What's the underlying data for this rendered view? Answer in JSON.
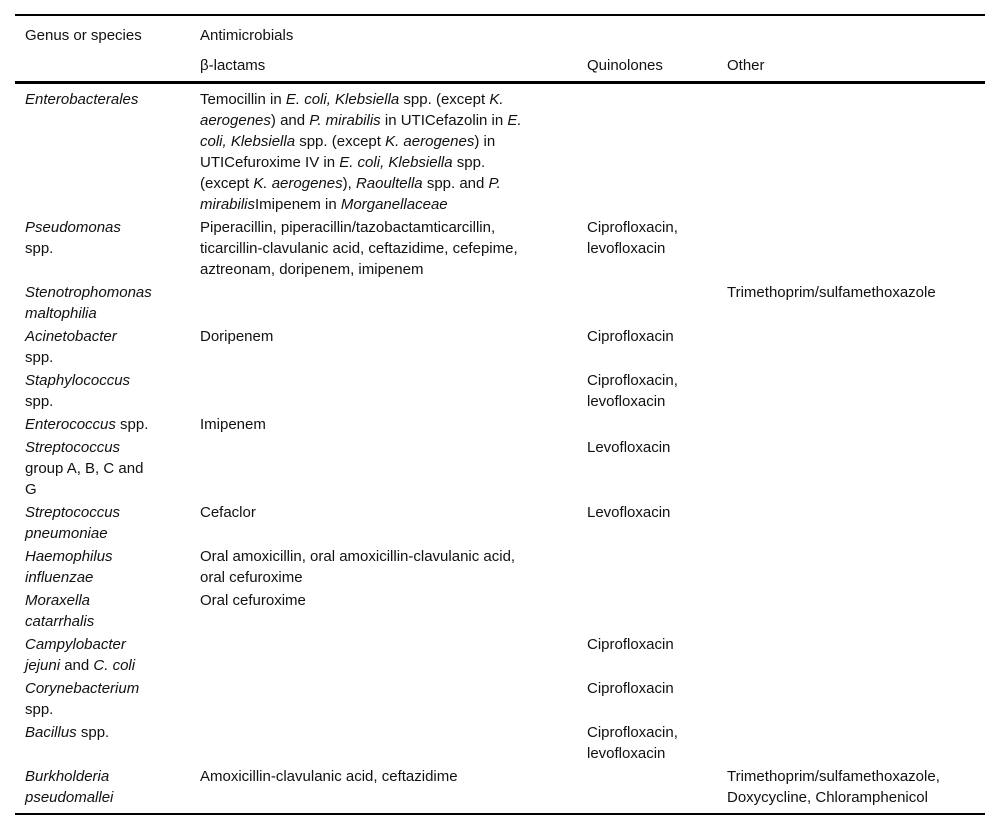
{
  "header": {
    "genus_label": "Genus or species",
    "antimicrobials_label": "Antimicrobials",
    "beta_lactams_label": "β-lactams",
    "quinolones_label": "Quinolones",
    "other_label": "Other"
  },
  "rows": [
    {
      "genus": [
        [
          {
            "t": "Enterobacterales",
            "i": true
          }
        ]
      ],
      "beta_lactams": [
        [
          {
            "t": "Temocillin in ",
            "i": false
          },
          {
            "t": "E. coli, Klebsiella",
            "i": true
          },
          {
            "t": " spp. (except ",
            "i": false
          },
          {
            "t": "K.",
            "i": true
          }
        ],
        [
          {
            "t": "aerogenes",
            "i": true
          },
          {
            "t": ") and ",
            "i": false
          },
          {
            "t": "P. mirabilis",
            "i": true
          },
          {
            "t": " in UTICefazolin in ",
            "i": false
          },
          {
            "t": "E.",
            "i": true
          }
        ],
        [
          {
            "t": "coli, Klebsiella",
            "i": true
          },
          {
            "t": " spp. (except ",
            "i": false
          },
          {
            "t": "K. aerogenes",
            "i": true
          },
          {
            "t": ") in",
            "i": false
          }
        ],
        [
          {
            "t": "UTICefuroxime IV in ",
            "i": false
          },
          {
            "t": "E. coli, Klebsiella",
            "i": true
          },
          {
            "t": " spp.",
            "i": false
          }
        ],
        [
          {
            "t": "(except ",
            "i": false
          },
          {
            "t": "K. aerogenes",
            "i": true
          },
          {
            "t": "), ",
            "i": false
          },
          {
            "t": "Raoultella",
            "i": true
          },
          {
            "t": " spp. and ",
            "i": false
          },
          {
            "t": "P.",
            "i": true
          }
        ],
        [
          {
            "t": "mirabilis",
            "i": true
          },
          {
            "t": "Imipenem in ",
            "i": false
          },
          {
            "t": "Morganellaceae",
            "i": true
          }
        ]
      ],
      "quinolones": [],
      "other": []
    },
    {
      "genus": [
        [
          {
            "t": "Pseudomonas",
            "i": true
          }
        ],
        [
          {
            "t": "spp.",
            "i": false
          }
        ]
      ],
      "beta_lactams": [
        [
          {
            "t": "Piperacillin, piperacillin/tazobactamticarcillin,",
            "i": false
          }
        ],
        [
          {
            "t": "ticarcillin-clavulanic acid, ceftazidime, cefepime,",
            "i": false
          }
        ],
        [
          {
            "t": "aztreonam, doripenem, imipenem",
            "i": false
          }
        ]
      ],
      "quinolones": [
        [
          {
            "t": "Ciprofloxacin,",
            "i": false
          }
        ],
        [
          {
            "t": "levofloxacin",
            "i": false
          }
        ]
      ],
      "other": []
    },
    {
      "genus": [
        [
          {
            "t": "Stenotrophomonas",
            "i": true
          }
        ],
        [
          {
            "t": "maltophilia",
            "i": true
          }
        ]
      ],
      "beta_lactams": [],
      "quinolones": [],
      "other": [
        [
          {
            "t": "Trimethoprim/sulfamethoxazole",
            "i": false
          }
        ]
      ]
    },
    {
      "genus": [
        [
          {
            "t": "Acinetobacter",
            "i": true
          }
        ],
        [
          {
            "t": "spp.",
            "i": false
          }
        ]
      ],
      "beta_lactams": [
        [
          {
            "t": "Doripenem",
            "i": false
          }
        ]
      ],
      "quinolones": [
        [
          {
            "t": "Ciprofloxacin",
            "i": false
          }
        ]
      ],
      "other": []
    },
    {
      "genus": [
        [
          {
            "t": "Staphylococcus",
            "i": true
          }
        ],
        [
          {
            "t": "spp.",
            "i": false
          }
        ]
      ],
      "beta_lactams": [],
      "quinolones": [
        [
          {
            "t": "Ciprofloxacin,",
            "i": false
          }
        ],
        [
          {
            "t": "levofloxacin",
            "i": false
          }
        ]
      ],
      "other": []
    },
    {
      "genus": [
        [
          {
            "t": "Enterococcus",
            "i": true
          },
          {
            "t": " spp.",
            "i": false
          }
        ]
      ],
      "beta_lactams": [
        [
          {
            "t": "Imipenem",
            "i": false
          }
        ]
      ],
      "quinolones": [],
      "other": []
    },
    {
      "genus": [
        [
          {
            "t": "Streptococcus",
            "i": true
          }
        ],
        [
          {
            "t": "group A, B, C and",
            "i": false
          }
        ],
        [
          {
            "t": "G",
            "i": false
          }
        ]
      ],
      "beta_lactams": [],
      "quinolones": [
        [
          {
            "t": "Levofloxacin",
            "i": false
          }
        ]
      ],
      "other": []
    },
    {
      "genus": [
        [
          {
            "t": "Streptococcus",
            "i": true
          }
        ],
        [
          {
            "t": "pneumoniae",
            "i": true
          }
        ]
      ],
      "beta_lactams": [
        [
          {
            "t": "Cefaclor",
            "i": false
          }
        ]
      ],
      "quinolones": [
        [
          {
            "t": "Levofloxacin",
            "i": false
          }
        ]
      ],
      "other": []
    },
    {
      "genus": [
        [
          {
            "t": "Haemophilus",
            "i": true
          }
        ],
        [
          {
            "t": "influenzae",
            "i": true
          }
        ]
      ],
      "beta_lactams": [
        [
          {
            "t": "Oral amoxicillin, oral amoxicillin-clavulanic acid,",
            "i": false
          }
        ],
        [
          {
            "t": "oral cefuroxime",
            "i": false
          }
        ]
      ],
      "quinolones": [],
      "other": []
    },
    {
      "genus": [
        [
          {
            "t": "Moraxella",
            "i": true
          }
        ],
        [
          {
            "t": "catarrhalis",
            "i": true
          }
        ]
      ],
      "beta_lactams": [
        [
          {
            "t": "Oral cefuroxime",
            "i": false
          }
        ]
      ],
      "quinolones": [],
      "other": []
    },
    {
      "genus": [
        [
          {
            "t": "Campylobacter",
            "i": true
          }
        ],
        [
          {
            "t": "jejuni",
            "i": true
          },
          {
            "t": " and ",
            "i": false
          },
          {
            "t": "C. coli",
            "i": true
          }
        ]
      ],
      "beta_lactams": [],
      "quinolones": [
        [
          {
            "t": "Ciprofloxacin",
            "i": false
          }
        ]
      ],
      "other": []
    },
    {
      "genus": [
        [
          {
            "t": "Corynebacterium",
            "i": true
          }
        ],
        [
          {
            "t": "spp.",
            "i": false
          }
        ]
      ],
      "beta_lactams": [],
      "quinolones": [
        [
          {
            "t": "Ciprofloxacin",
            "i": false
          }
        ]
      ],
      "other": []
    },
    {
      "genus": [
        [
          {
            "t": "Bacillus",
            "i": true
          },
          {
            "t": " spp.",
            "i": false
          }
        ]
      ],
      "beta_lactams": [],
      "quinolones": [
        [
          {
            "t": "Ciprofloxacin,",
            "i": false
          }
        ],
        [
          {
            "t": "levofloxacin",
            "i": false
          }
        ]
      ],
      "other": []
    },
    {
      "genus": [
        [
          {
            "t": "Burkholderia",
            "i": true
          }
        ],
        [
          {
            "t": "pseudomallei",
            "i": true
          }
        ]
      ],
      "beta_lactams": [
        [
          {
            "t": "Amoxicillin-clavulanic acid, ceftazidime",
            "i": false
          }
        ]
      ],
      "quinolones": [],
      "other": [
        [
          {
            "t": "Trimethoprim/sulfamethoxazole,",
            "i": false
          }
        ],
        [
          {
            "t": "Doxycycline, Chloramphenicol",
            "i": false
          }
        ]
      ]
    }
  ],
  "colors": {
    "text": "#111111",
    "rule": "#000000",
    "background": "#ffffff"
  }
}
